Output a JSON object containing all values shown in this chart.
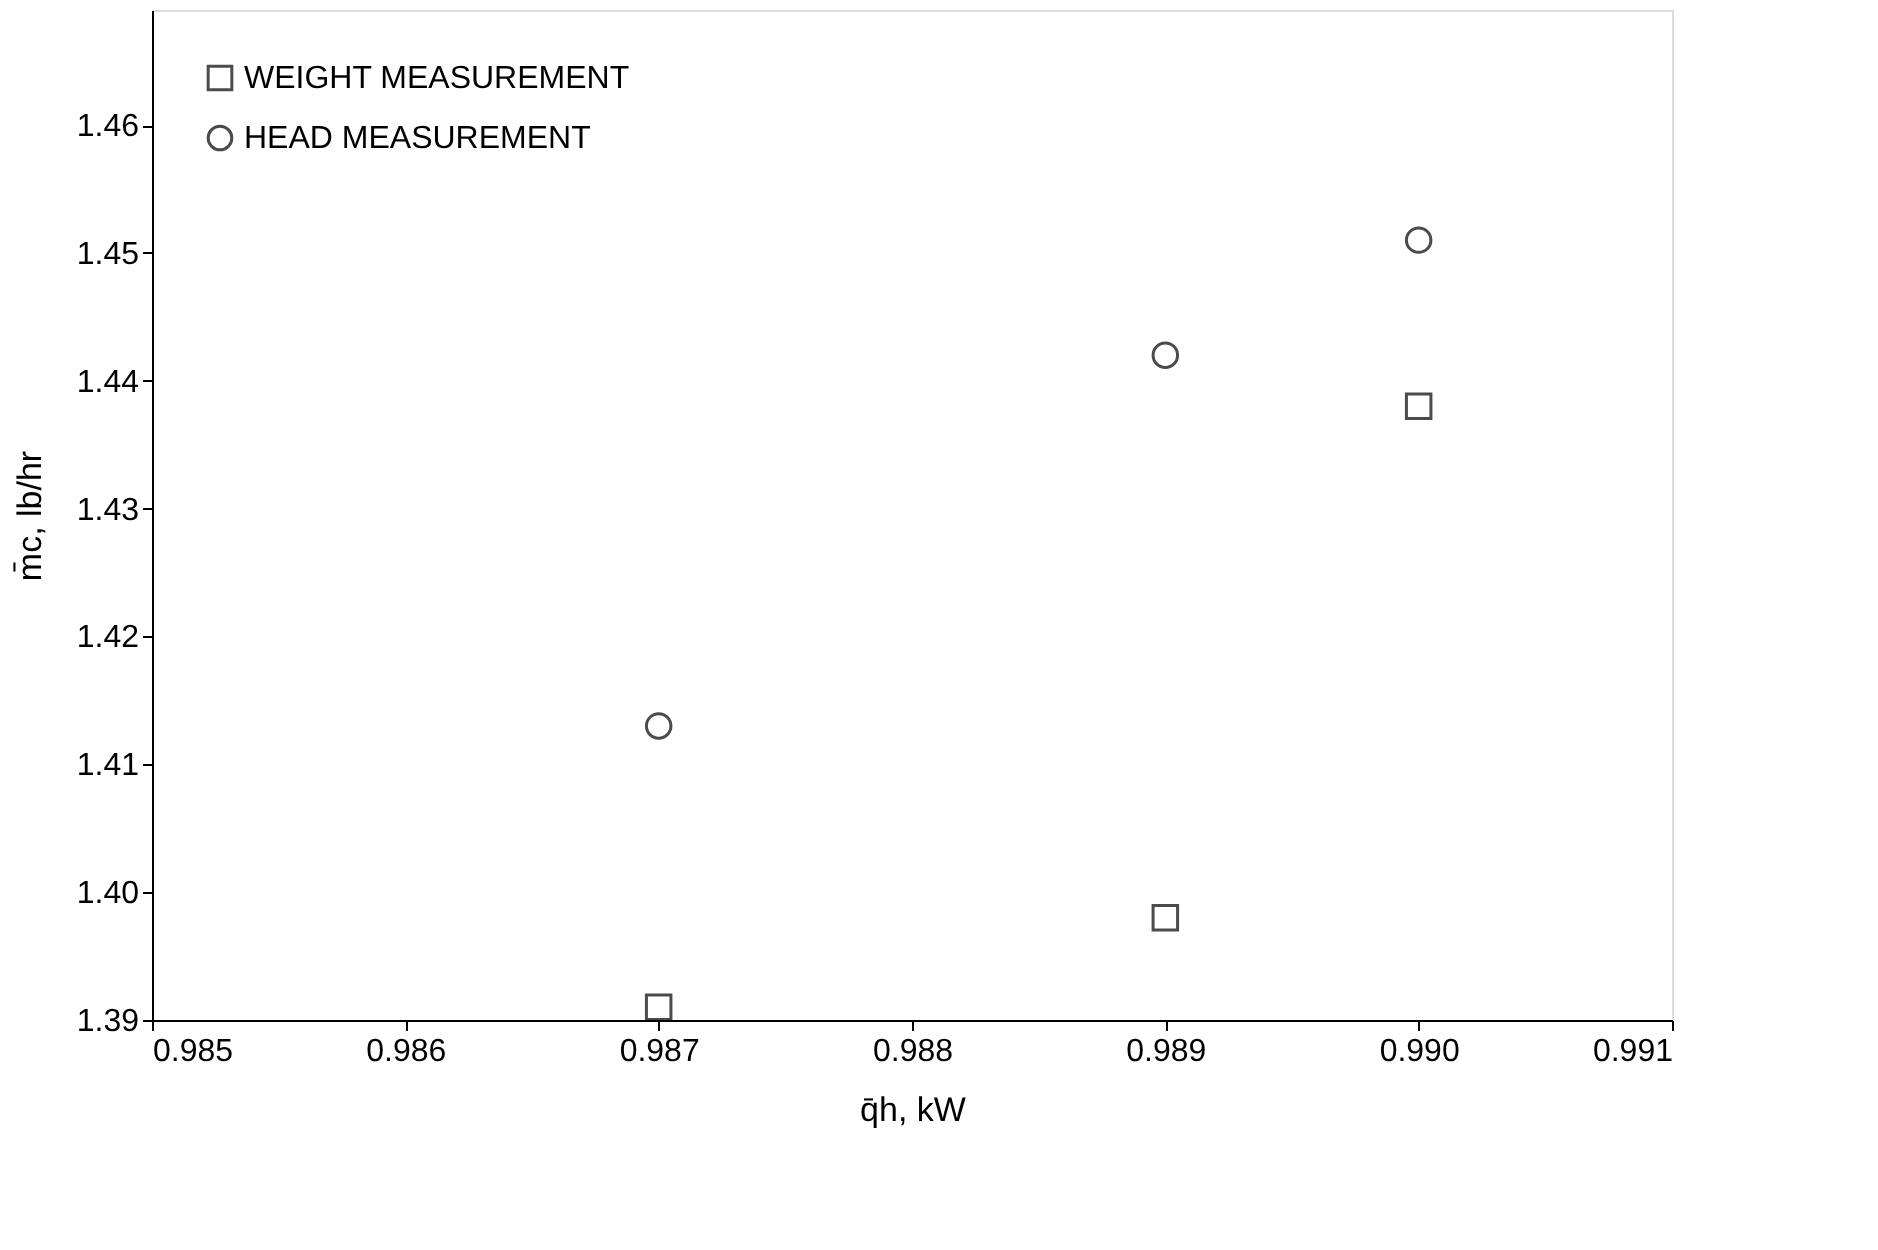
{
  "chart_data": {
    "type": "scatter",
    "xlabel": "q̄h, kW",
    "ylabel": "m̄c, lb/hr",
    "xlim": [
      0.985,
      0.991
    ],
    "xticks": [
      0.985,
      0.986,
      0.987,
      0.988,
      0.989,
      {
        "value": 0.99,
        "label": "0.990"
      },
      0.991
    ],
    "ylim": [
      1.39,
      1.469
    ],
    "yticks": [
      1.39,
      {
        "value": 1.4,
        "label": "1.40"
      },
      1.41,
      1.42,
      1.43,
      1.44,
      1.45,
      1.46
    ],
    "grid": false,
    "legend": "top left",
    "series": [
      {
        "name": "WEIGHT MEASUREMENT",
        "color": "#000000",
        "marker": "square",
        "x": [
          0.987,
          0.989,
          0.99
        ],
        "values": [
          1.391,
          1.398,
          1.438
        ]
      },
      {
        "name": "HEAD MEASUREMENT",
        "color": "#000000",
        "marker": "circle",
        "x": [
          0.987,
          0.989,
          0.99
        ],
        "values": [
          1.413,
          1.442,
          1.451
        ]
      }
    ]
  }
}
